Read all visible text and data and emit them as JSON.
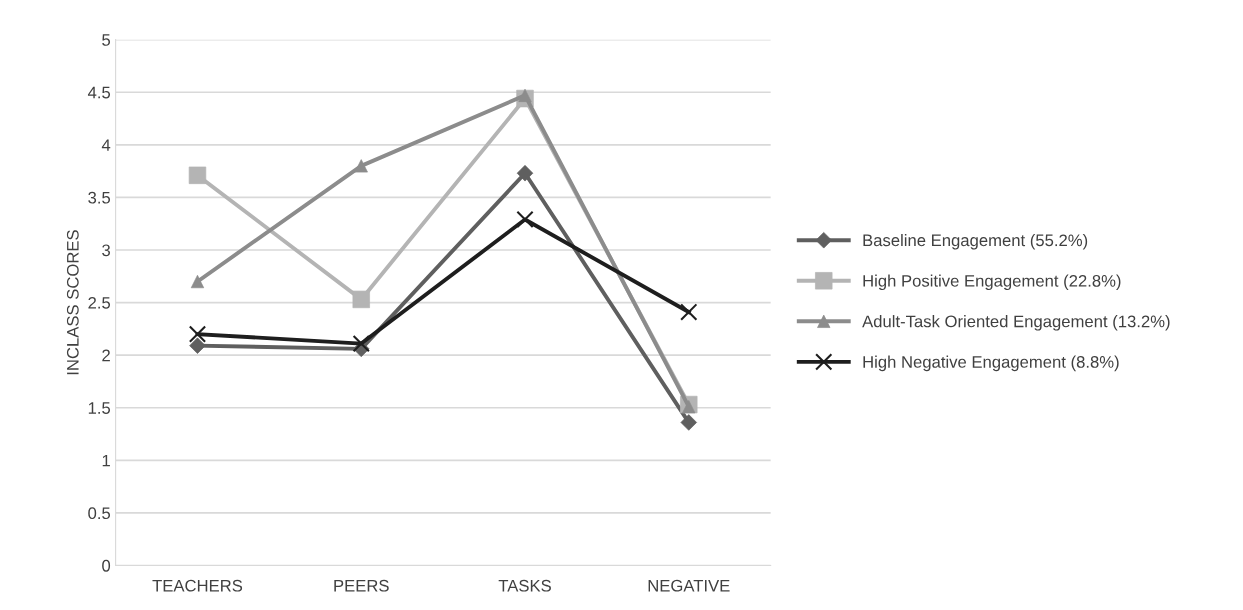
{
  "chart_data": {
    "type": "line",
    "ylabel": "INCLASS SCORES",
    "categories": [
      "TEACHERS",
      "PEERS",
      "TASKS",
      "NEGATIVE"
    ],
    "series": [
      {
        "name": "Baseline Engagement (55.2%)",
        "color": "#5f5f5f",
        "marker": "diamond",
        "values": [
          2.09,
          2.06,
          3.73,
          1.36
        ]
      },
      {
        "name": "High Positive Engagement (22.8%)",
        "color": "#b4b4b4",
        "marker": "square",
        "values": [
          3.71,
          2.53,
          4.44,
          1.53
        ]
      },
      {
        "name": "Adult-Task Oriented Engagement (13.2%)",
        "color": "#8c8c8c",
        "marker": "triangle",
        "values": [
          2.7,
          3.8,
          4.47,
          1.51
        ]
      },
      {
        "name": "High Negative Engagement (8.8%)",
        "color": "#1e1e1e",
        "marker": "cross",
        "values": [
          2.2,
          2.11,
          3.29,
          2.41
        ]
      }
    ],
    "ylim": [
      0,
      5
    ],
    "yticks": [
      0,
      0.5,
      1,
      1.5,
      2,
      2.5,
      3,
      3.5,
      4,
      4.5,
      5
    ],
    "grid": "y",
    "legend": "right",
    "line_style": "solid"
  }
}
